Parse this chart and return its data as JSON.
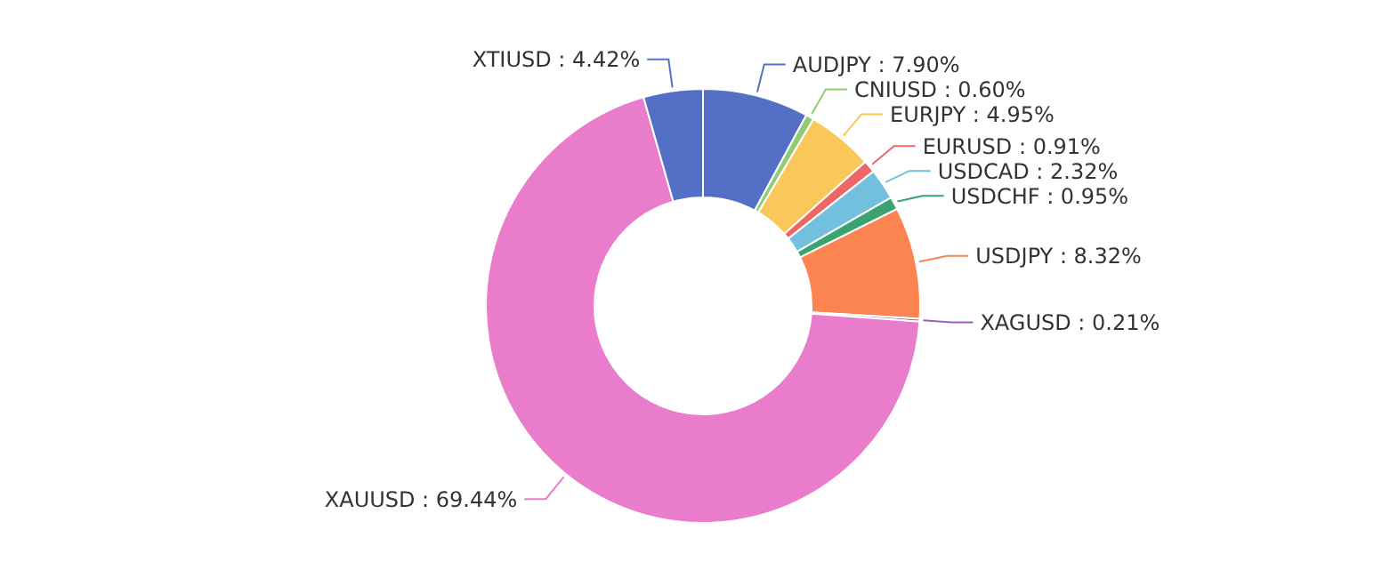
{
  "chart_data": {
    "type": "donut",
    "categories": [
      "AUDJPY",
      "CNIUSD",
      "EURJPY",
      "EURUSD",
      "USDCAD",
      "USDCHF",
      "USDJPY",
      "XAGUSD",
      "XAUUSD",
      "XTIUSD"
    ],
    "values": [
      7.9,
      0.6,
      4.95,
      0.91,
      2.32,
      0.95,
      8.32,
      0.21,
      69.44,
      4.42
    ],
    "value_labels": [
      "7.90%",
      "0.60%",
      "4.95%",
      "0.91%",
      "2.32%",
      "0.95%",
      "8.32%",
      "0.21%",
      "69.44%",
      "4.42%"
    ],
    "colors": [
      "#5470c6",
      "#91cc75",
      "#fac858",
      "#ee6666",
      "#73c0de",
      "#3ba272",
      "#fc8452",
      "#9a60b4",
      "#ea7ccc",
      "#5470c6"
    ],
    "legend": false
  }
}
